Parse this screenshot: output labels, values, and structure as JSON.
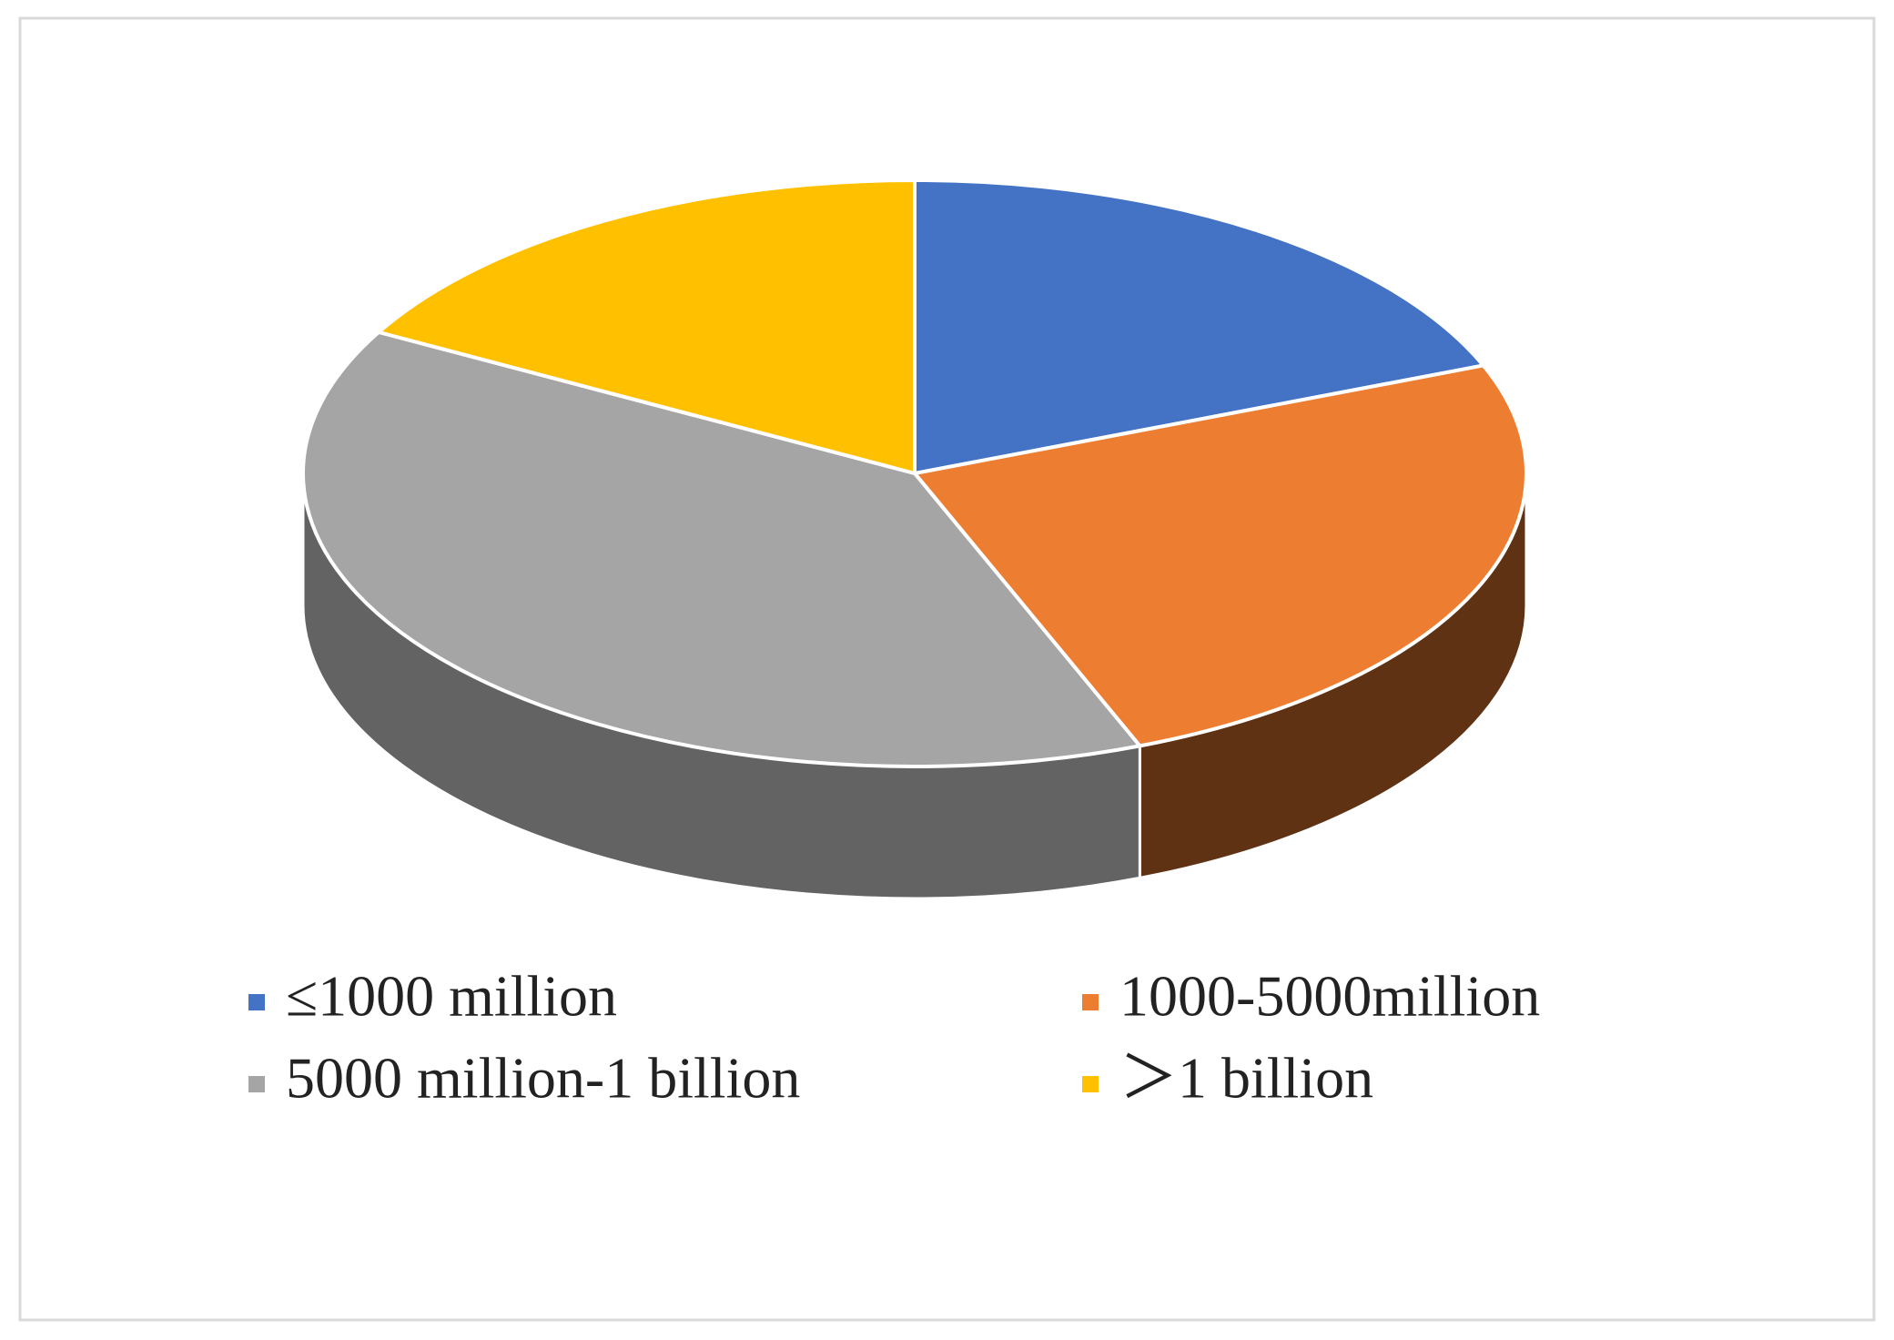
{
  "chart_data": {
    "type": "pie3d",
    "categories": [
      "≤1000 million",
      "1000-5000million",
      "5000 million-1 billion",
      "＞1 billion"
    ],
    "values": [
      19,
      25,
      39,
      17
    ],
    "colors": [
      "#4472c4",
      "#ed7d31",
      "#a5a5a5",
      "#ffc000"
    ],
    "legend": "bottom"
  }
}
